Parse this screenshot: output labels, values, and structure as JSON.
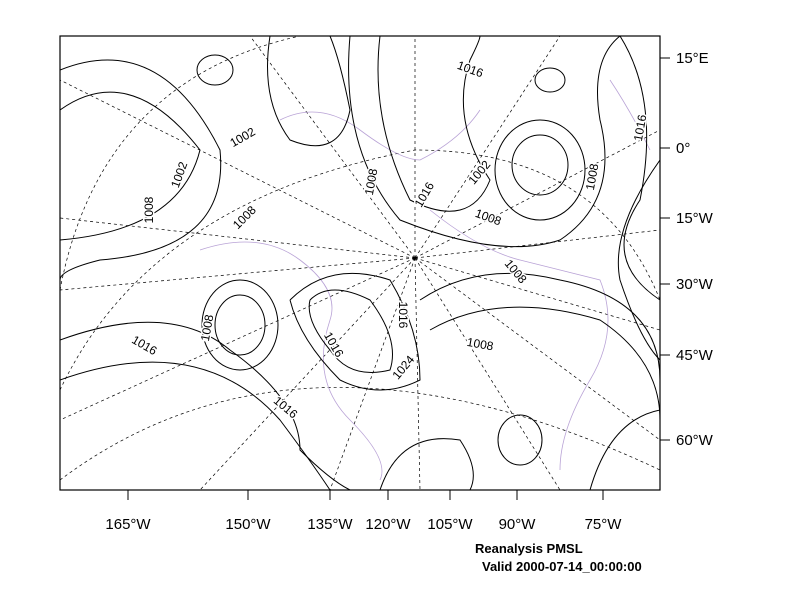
{
  "map": {
    "title": "Reanalysis PMSL",
    "subtitle": "Valid 2000-07-14_00:00:00",
    "bottom_labels": [
      "165°W",
      "150°W",
      "135°W",
      "120°W",
      "105°W",
      "90°W",
      "75°W"
    ],
    "right_labels": [
      "15°E",
      "0°",
      "15°W",
      "30°W",
      "45°W",
      "60°W"
    ],
    "contour_labels": [
      "1016",
      "1002",
      "1002",
      "1008",
      "1008",
      "1008",
      "1016",
      "1002",
      "1008",
      "1008",
      "1016",
      "1008",
      "1008",
      "1016",
      "1016",
      "1016",
      "1024",
      "1008",
      "1016"
    ]
  }
}
